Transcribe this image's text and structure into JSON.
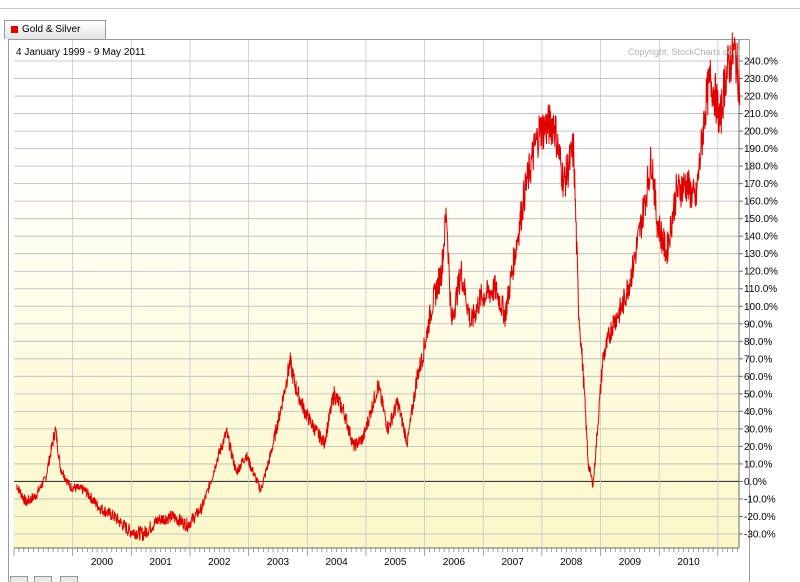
{
  "legend": {
    "label": "Gold & Silver",
    "color": "#e00000"
  },
  "header": {
    "date_range": "4 January 1999 - 9 May 2011",
    "copyright": "Copyright, StockCharts.com"
  },
  "chart_data": {
    "type": "line",
    "ylim": [
      -38,
      252
    ],
    "y_ticks": [
      -30,
      -20,
      -10,
      0,
      10,
      20,
      30,
      40,
      50,
      60,
      70,
      80,
      90,
      100,
      110,
      120,
      130,
      140,
      150,
      160,
      170,
      180,
      190,
      200,
      210,
      220,
      230,
      240
    ],
    "y_tick_format": "%",
    "x_tick_labels": [
      "2000",
      "2001",
      "2002",
      "2003",
      "2004",
      "2005",
      "2006",
      "2007",
      "2008",
      "2009",
      "2010"
    ],
    "grid": true,
    "zero_line": true,
    "series": [
      {
        "name": "Gold & Silver",
        "color": "#e00000",
        "x": [
          "1999-01",
          "1999-03",
          "1999-05",
          "1999-07",
          "1999-09",
          "1999-10",
          "1999-12",
          "2000-03",
          "2000-06",
          "2000-09",
          "2000-12",
          "2001-03",
          "2001-06",
          "2001-09",
          "2001-12",
          "2002-03",
          "2002-05",
          "2002-06",
          "2002-08",
          "2002-10",
          "2002-12",
          "2003-03",
          "2003-05",
          "2003-07",
          "2003-09",
          "2003-10",
          "2003-12",
          "2004-02",
          "2004-04",
          "2004-06",
          "2004-08",
          "2004-10",
          "2004-12",
          "2005-03",
          "2005-05",
          "2005-07",
          "2005-09",
          "2005-11",
          "2005-12",
          "2006-02",
          "2006-04",
          "2006-05",
          "2006-06",
          "2006-08",
          "2006-10",
          "2006-12",
          "2007-03",
          "2007-05",
          "2007-07",
          "2007-09",
          "2007-11",
          "2007-12",
          "2008-03",
          "2008-05",
          "2008-07",
          "2008-08",
          "2008-09",
          "2008-10",
          "2008-11",
          "2009-01",
          "2009-03",
          "2009-05",
          "2009-07",
          "2009-09",
          "2009-11",
          "2009-12",
          "2010-02",
          "2010-04",
          "2010-06",
          "2010-08",
          "2010-10",
          "2010-11",
          "2010-12",
          "2011-01",
          "2011-02",
          "2011-03",
          "2011-04",
          "2011-05"
        ],
        "values": [
          -2,
          -12,
          -8,
          2,
          30,
          8,
          -3,
          -5,
          -15,
          -20,
          -28,
          -30,
          -22,
          -20,
          -25,
          -15,
          2,
          12,
          28,
          5,
          15,
          -5,
          15,
          40,
          68,
          55,
          40,
          30,
          22,
          50,
          40,
          20,
          25,
          55,
          30,
          45,
          22,
          60,
          70,
          100,
          120,
          155,
          90,
          120,
          90,
          105,
          110,
          95,
          130,
          165,
          190,
          200,
          205,
          170,
          190,
          100,
          60,
          10,
          -2,
          70,
          90,
          100,
          120,
          150,
          185,
          150,
          130,
          165,
          170,
          160,
          215,
          230,
          220,
          205,
          230,
          240,
          245,
          225
        ]
      }
    ]
  }
}
